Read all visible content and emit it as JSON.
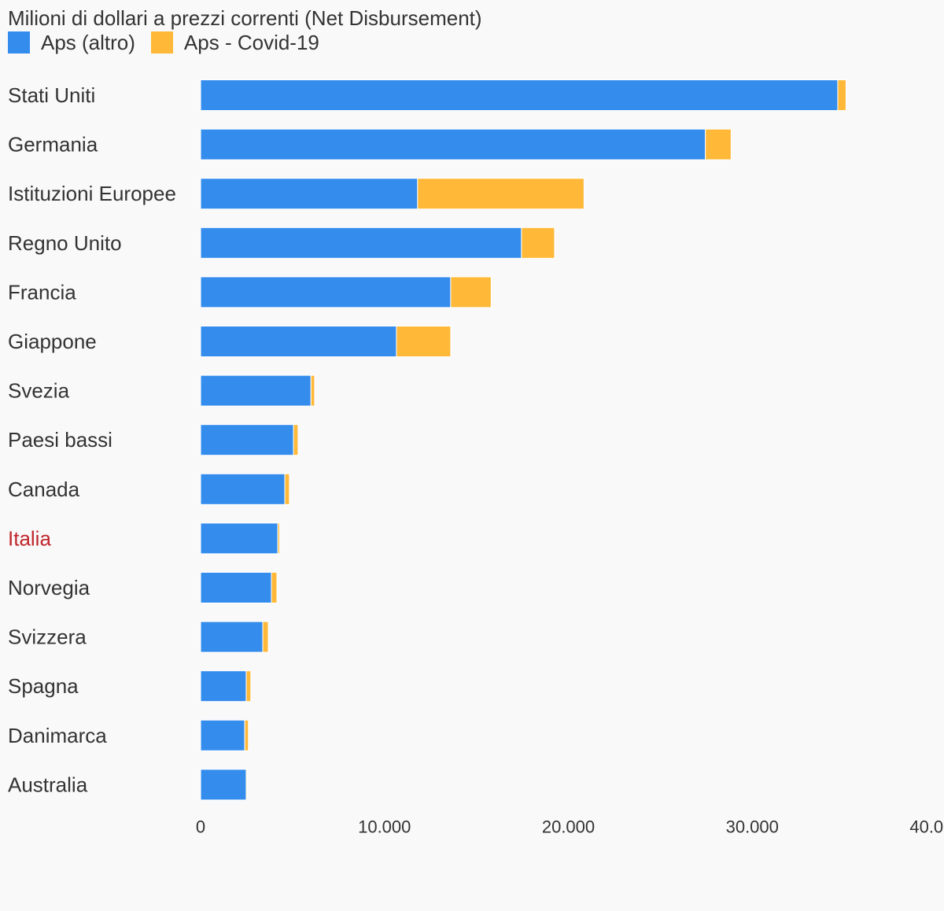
{
  "chart_data": {
    "type": "bar",
    "orientation": "horizontal",
    "stacked": true,
    "title": "Milioni di dollari a prezzi correnti (Net Disbursement)",
    "xlabel": "",
    "ylabel": "",
    "xlim": [
      0,
      40000
    ],
    "x_ticks": [
      0,
      10000,
      20000,
      30000,
      40000
    ],
    "x_tick_labels": [
      "0",
      "10.000",
      "20.000",
      "30.000",
      "40.000"
    ],
    "grid": false,
    "legend_position": "top-left",
    "categories": [
      "Stati Uniti",
      "Germania",
      "Istituzioni Europee",
      "Regno Unito",
      "Francia",
      "Giappone",
      "Svezia",
      "Paesi bassi",
      "Canada",
      "Italia",
      "Norvegia",
      "Svizzera",
      "Spagna",
      "Danimarca",
      "Australia"
    ],
    "highlighted_category": "Italia",
    "highlight_color": "#c0272d",
    "label_color": "#333333",
    "series": [
      {
        "name": "Aps (altro)",
        "color": "#348ced",
        "values": [
          34650,
          27450,
          11800,
          17450,
          13600,
          10650,
          6000,
          5050,
          4580,
          4200,
          3850,
          3380,
          2480,
          2400,
          2480
        ]
      },
      {
        "name": "Aps - Covid-19",
        "color": "#ffb838",
        "values": [
          450,
          1400,
          9050,
          1800,
          2200,
          2950,
          200,
          250,
          250,
          100,
          300,
          300,
          250,
          200,
          50
        ]
      }
    ]
  }
}
